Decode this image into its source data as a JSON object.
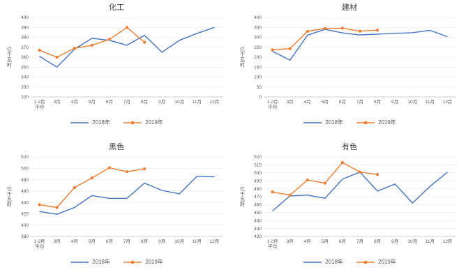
{
  "colors": {
    "series2018": "#4472C4",
    "series2019": "#ED7D31",
    "grid": "#E6E6E6",
    "axis": "#BFBFBF",
    "text": "#595959"
  },
  "chart_data": [
    {
      "type": "line",
      "title": "化工",
      "ylabel": "亿千瓦时",
      "categories": [
        "1-2月\n平均",
        "3月",
        "4月",
        "5月",
        "6月",
        "7月",
        "8月",
        "9月",
        "10月",
        "11月",
        "12月"
      ],
      "ylim": [
        320,
        400
      ],
      "ytick_step": 10,
      "grid": true,
      "legend_position": "bottom",
      "series": [
        {
          "name": "2018年",
          "marker": false,
          "values": [
            361,
            350,
            368,
            379,
            377,
            372,
            382,
            365,
            377,
            384,
            390
          ]
        },
        {
          "name": "2019年",
          "marker": true,
          "values": [
            367,
            360,
            369,
            372,
            378,
            390,
            375
          ]
        }
      ]
    },
    {
      "type": "line",
      "title": "建材",
      "ylabel": "亿千瓦时",
      "categories": [
        "1-2月\n平均",
        "3月",
        "4月",
        "5月",
        "6月",
        "7月",
        "8月",
        "9月",
        "10月",
        "11月",
        "12月"
      ],
      "ylim": [
        0,
        400
      ],
      "ytick_step": 50,
      "grid": true,
      "legend_position": "bottom",
      "series": [
        {
          "name": "2018年",
          "marker": false,
          "values": [
            230,
            185,
            310,
            340,
            322,
            312,
            316,
            320,
            323,
            335,
            303
          ]
        },
        {
          "name": "2019年",
          "marker": true,
          "values": [
            237,
            243,
            330,
            345,
            346,
            331,
            336
          ]
        }
      ]
    },
    {
      "type": "line",
      "title": "黑色",
      "ylabel": "亿千瓦时",
      "categories": [
        "1-2月\n平均",
        "3月",
        "4月",
        "5月",
        "6月",
        "7月",
        "8月",
        "9月",
        "10月",
        "11月",
        "12月"
      ],
      "ylim": [
        380,
        520
      ],
      "ytick_step": 20,
      "grid": true,
      "legend_position": "bottom",
      "series": [
        {
          "name": "2018年",
          "marker": false,
          "values": [
            424,
            419,
            431,
            452,
            447,
            447,
            474,
            461,
            455,
            486,
            485
          ]
        },
        {
          "name": "2019年",
          "marker": true,
          "values": [
            436,
            431,
            466,
            483,
            501,
            494,
            499
          ]
        }
      ]
    },
    {
      "type": "line",
      "title": "有色",
      "ylabel": "亿千瓦时",
      "categories": [
        "1-2月\n平均",
        "3月",
        "4月",
        "5月",
        "6月",
        "7月",
        "8月",
        "9月",
        "10月",
        "11月",
        "12月"
      ],
      "ylim": [
        420,
        520
      ],
      "ytick_step": 10,
      "grid": true,
      "legend_position": "bottom",
      "series": [
        {
          "name": "2018年",
          "marker": false,
          "values": [
            452,
            471,
            472,
            468,
            492,
            501,
            477,
            486,
            462,
            483,
            501
          ]
        },
        {
          "name": "2019年",
          "marker": true,
          "values": [
            476,
            472,
            491,
            487,
            513,
            501,
            498
          ]
        }
      ]
    }
  ]
}
